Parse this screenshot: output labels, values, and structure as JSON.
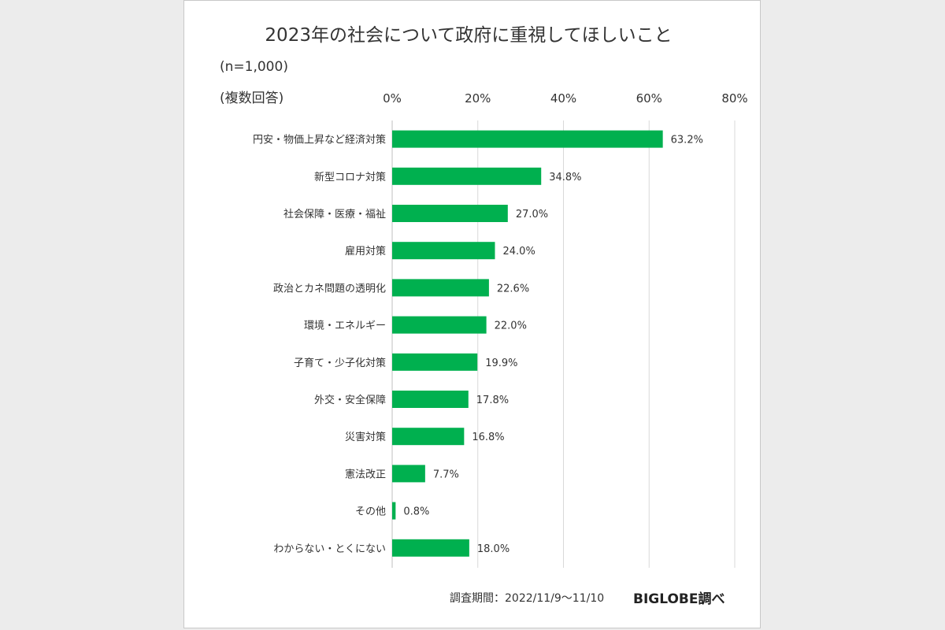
{
  "chart_data": {
    "type": "bar",
    "orientation": "horizontal",
    "title": "2023年の社会について政府に重視してほしいこと",
    "sample_size": "(n=1,000)",
    "note": "(複数回答)",
    "categories": [
      "円安・物価上昇など経済対策",
      "新型コロナ対策",
      "社会保障・医療・福祉",
      "雇用対策",
      "政治とカネ問題の透明化",
      "環境・エネルギー",
      "子育て・少子化対策",
      "外交・安全保障",
      "災害対策",
      "憲法改正",
      "その他",
      "わからない・とくにない"
    ],
    "values": [
      63.2,
      34.8,
      27.0,
      24.0,
      22.6,
      22.0,
      19.9,
      17.8,
      16.8,
      7.7,
      0.8,
      18.0
    ],
    "value_labels": [
      "63.2%",
      "34.8%",
      "27.0%",
      "24.0%",
      "22.6%",
      "22.0%",
      "19.9%",
      "17.8%",
      "16.8%",
      "7.7%",
      "0.8%",
      "18.0%"
    ],
    "x_ticks": [
      0,
      20,
      40,
      60,
      80
    ],
    "x_tick_labels": [
      "0%",
      "20%",
      "40%",
      "60%",
      "80%"
    ],
    "xlim": [
      0,
      80
    ],
    "axis_position": "top",
    "grid": true,
    "bar_color": "#00b04f",
    "source": "調査期間：2022/11/9～11/10",
    "brand": "BIGLOBE調べ"
  }
}
